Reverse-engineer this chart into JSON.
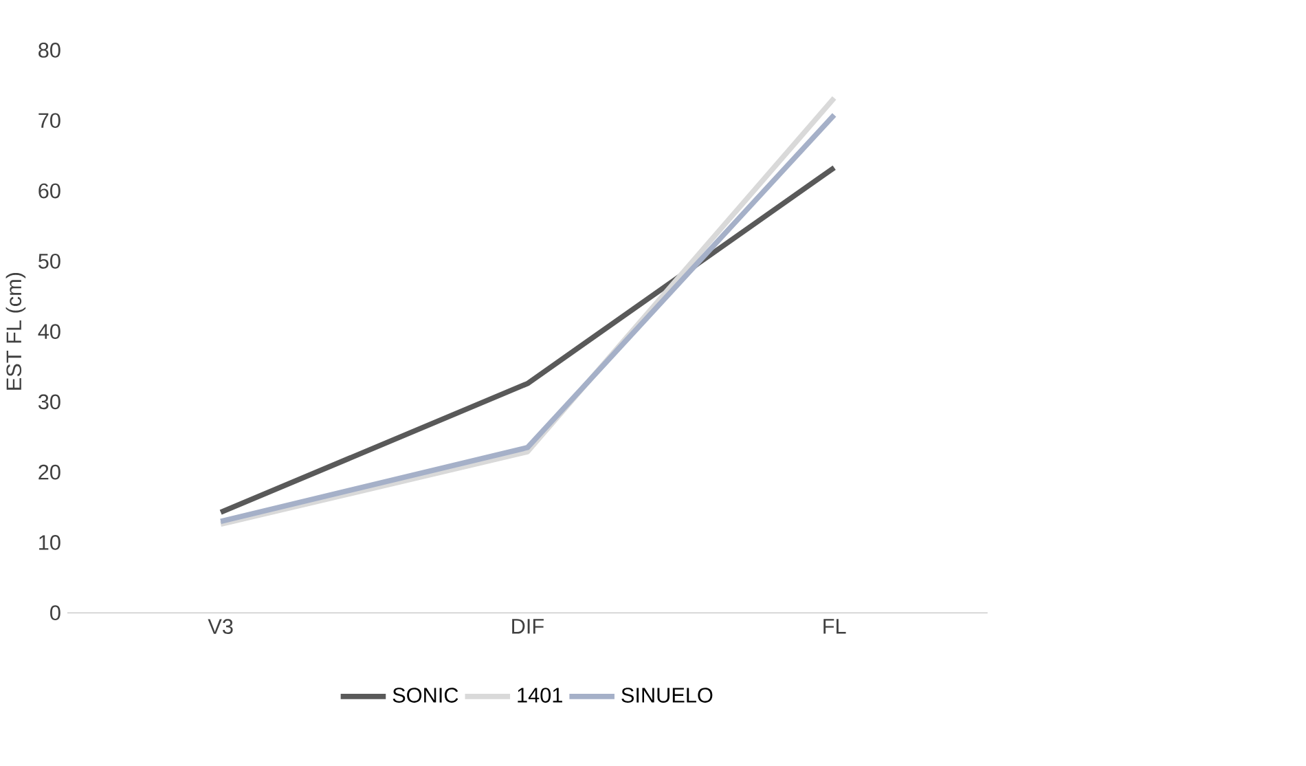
{
  "chart_data": {
    "type": "line",
    "ylabel": "EST FL (cm)",
    "categories": [
      "V3",
      "DIF",
      "FL"
    ],
    "series": [
      {
        "name": "SONIC",
        "color": "#595959",
        "values": [
          14.3,
          32.6,
          63.3
        ]
      },
      {
        "name": "1401",
        "color": "#d9d9d9",
        "values": [
          12.6,
          22.9,
          73.2
        ]
      },
      {
        "name": "SINUELO",
        "color": "#a5b0c8",
        "values": [
          13.0,
          23.5,
          70.8
        ]
      }
    ],
    "ylim": [
      0,
      80
    ],
    "yticks": [
      0,
      10,
      20,
      30,
      40,
      50,
      60,
      70,
      80
    ],
    "grid": false,
    "legend": "bottom",
    "marker": "none",
    "line_style": "solid"
  }
}
